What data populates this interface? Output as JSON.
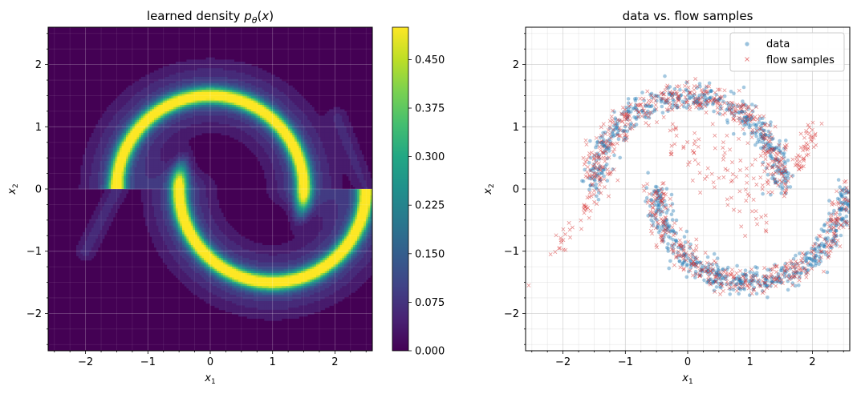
{
  "chart_data": [
    {
      "type": "heatmap",
      "title": "learned density p_θ(x)",
      "xlabel": "x1",
      "ylabel": "x2",
      "xlim": [
        -2.6,
        2.6
      ],
      "ylim": [
        -2.6,
        2.6
      ],
      "xticks": [
        "−2",
        "−1",
        "0",
        "1",
        "2"
      ],
      "yticks": [
        "−2",
        "−1",
        "0",
        "1",
        "2"
      ],
      "grid": true,
      "colormap": "viridis",
      "levels": 20,
      "colorbar": {
        "min": 0.0,
        "max": 0.5,
        "tick_values": [
          0.0,
          0.075,
          0.15,
          0.225,
          0.3,
          0.375,
          0.45
        ],
        "tick_labels": [
          "0.000",
          "0.075",
          "0.150",
          "0.225",
          "0.300",
          "0.375",
          "0.450"
        ]
      },
      "density_components": [
        {
          "name": "upper moon arc",
          "center": [
            0.0,
            0.0
          ],
          "radius": 1.5,
          "angle_range_deg": [
            0,
            180
          ],
          "peak": 0.49
        },
        {
          "name": "lower moon arc",
          "center": [
            1.0,
            0.0
          ],
          "radius": 1.5,
          "angle_range_deg": [
            180,
            360
          ],
          "peak": 0.5
        },
        {
          "name": "tail to lower-left",
          "from": [
            -2.0,
            -1.0
          ],
          "to": [
            -1.5,
            0.0
          ],
          "peak": 0.06
        },
        {
          "name": "tail to upper-right",
          "from": [
            2.5,
            0.0
          ],
          "to": [
            2.05,
            1.15
          ],
          "peak": 0.05
        }
      ]
    },
    {
      "type": "scatter",
      "title": "data vs. flow samples",
      "xlabel": "x1",
      "ylabel": "x2",
      "xlim": [
        -2.6,
        2.6
      ],
      "ylim": [
        -2.6,
        2.6
      ],
      "xticks": [
        "−2",
        "−1",
        "0",
        "1",
        "2"
      ],
      "yticks": [
        "−2",
        "−1",
        "0",
        "1",
        "2"
      ],
      "grid": true,
      "legend_position": "top-right",
      "series": [
        {
          "name": "data",
          "marker": "circle",
          "color": "#1f77b4",
          "count": 1000,
          "distribution": "two interleaving moons: upper arc centered (0,0) radius 1.5, lower arc centered (1,0) radius 1.5, noise 0.1"
        },
        {
          "name": "flow samples",
          "marker": "x",
          "color": "#d62728",
          "count": 1000,
          "distribution": "mostly on the same two moons, with a few points spread between the arcs and along both outer tails"
        }
      ],
      "outlier_samples": [
        [
          -2.55,
          -1.55
        ],
        [
          -2.2,
          -1.05
        ],
        [
          -2.05,
          -0.95
        ],
        [
          2.15,
          1.05
        ],
        [
          2.0,
          0.95
        ],
        [
          1.95,
          0.9
        ]
      ]
    }
  ]
}
